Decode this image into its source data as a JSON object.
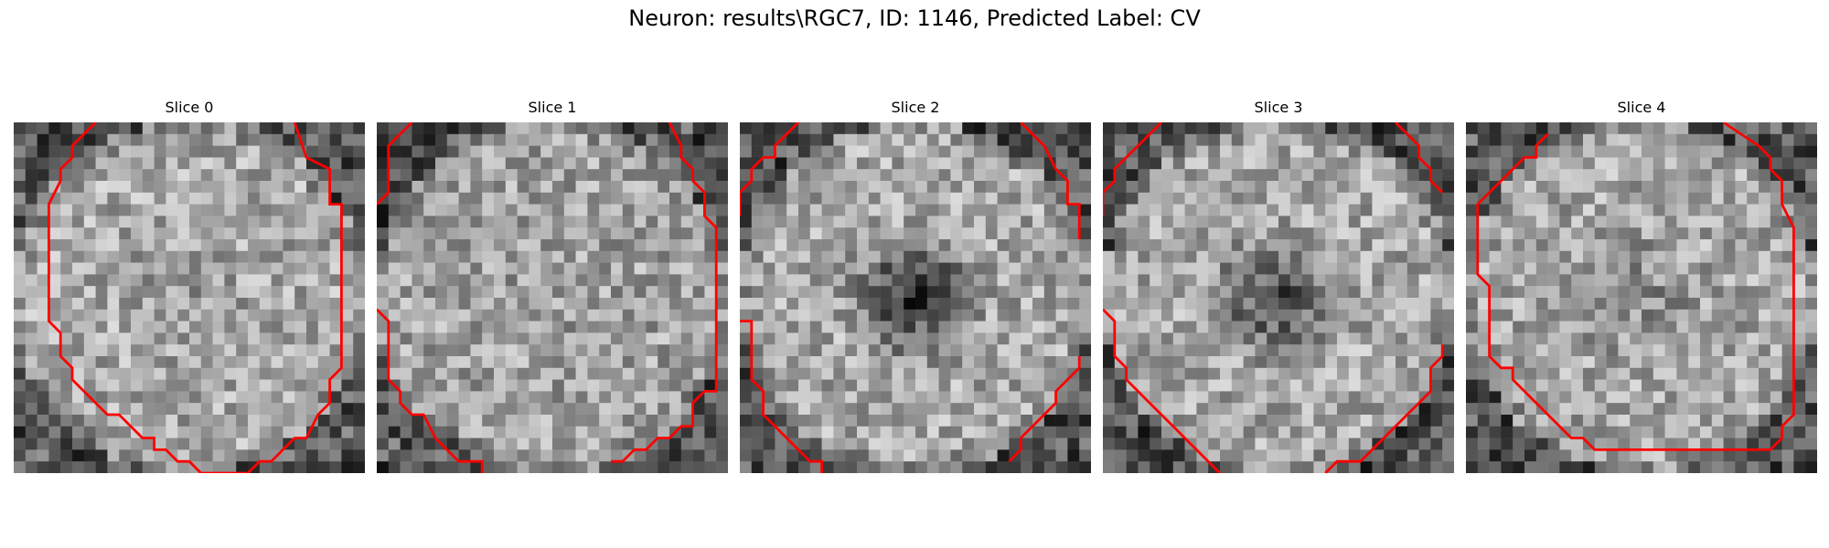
{
  "figure": {
    "title": "Neuron: results\\RGC7, ID: 1146, Predicted Label: CV",
    "contour_color": "#ff0000"
  },
  "panels": [
    {
      "title": "Slice 0",
      "seed": 11,
      "ring": 0.8,
      "center_dark": 0.08,
      "shade": "ring-bright"
    },
    {
      "title": "Slice 1",
      "seed": 23,
      "ring": 0.55,
      "center_dark": 0.02,
      "shade": "flat-bright"
    },
    {
      "title": "Slice 2",
      "seed": 37,
      "ring": 0.75,
      "center_dark": 0.45,
      "shade": "dark-center"
    },
    {
      "title": "Slice 3",
      "seed": 49,
      "ring": 0.75,
      "center_dark": 0.38,
      "shade": "dark-center"
    },
    {
      "title": "Slice 4",
      "seed": 61,
      "ring": 0.7,
      "center_dark": 0.1,
      "shade": "ring-bright"
    }
  ]
}
